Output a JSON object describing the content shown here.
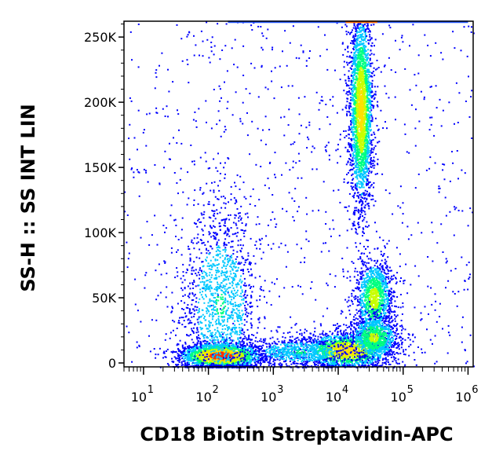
{
  "chart_data": {
    "type": "scatter",
    "subtype": "flow-cytometry-density-dot-plot",
    "xlabel": "CD18 Biotin Streptavidin-APC",
    "ylabel": "SS-H :: SS INT LIN",
    "x_scale": "log",
    "xlim": [
      5,
      1200000
    ],
    "ylim": [
      -3000,
      262144
    ],
    "x_ticks": [
      {
        "value": 10,
        "base": "10",
        "exp": "1"
      },
      {
        "value": 100,
        "base": "10",
        "exp": "2"
      },
      {
        "value": 1000,
        "base": "10",
        "exp": "3"
      },
      {
        "value": 10000,
        "base": "10",
        "exp": "4"
      },
      {
        "value": 100000,
        "base": "10",
        "exp": "5"
      },
      {
        "value": 1000000,
        "base": "10",
        "exp": "6"
      }
    ],
    "y_ticks": [
      {
        "value": 0,
        "label": "0"
      },
      {
        "value": 50000,
        "label": "50K"
      },
      {
        "value": 100000,
        "label": "100K"
      },
      {
        "value": 150000,
        "label": "150K"
      },
      {
        "value": 200000,
        "label": "200K"
      },
      {
        "value": 250000,
        "label": "250K"
      }
    ],
    "grid": false,
    "colormap": [
      "#0000ff",
      "#00c8ff",
      "#00ff80",
      "#c8ff00",
      "#ffe000",
      "#ff3000"
    ],
    "populations": [
      {
        "x_center": 150,
        "x_spread_decades": 0.32,
        "y_center": 6000,
        "y_spread": 5000,
        "events": 2200,
        "intensity": 1.0
      },
      {
        "x_center": 150,
        "y_center": 45000,
        "x_spread_decades": 0.3,
        "y_spread": 38000,
        "events": 1400,
        "intensity": 0.35
      },
      {
        "x_center": 13000,
        "x_spread_decades": 0.35,
        "y_center": 10000,
        "y_spread": 7000,
        "events": 1800,
        "intensity": 0.8
      },
      {
        "x_center": 2500,
        "x_spread_decades": 0.45,
        "y_center": 9000,
        "y_spread": 6000,
        "events": 700,
        "intensity": 0.35
      },
      {
        "x_center": 22000,
        "x_spread_decades": 0.09,
        "y_center": 195000,
        "y_spread": 38000,
        "events": 2600,
        "intensity": 0.75
      },
      {
        "x_center": 35000,
        "x_spread_decades": 0.14,
        "y_center": 50000,
        "y_spread": 15000,
        "events": 1200,
        "intensity": 0.6
      },
      {
        "x_center": 35000,
        "x_spread_decades": 0.2,
        "y_center": 20000,
        "y_spread": 9000,
        "events": 900,
        "intensity": 0.55
      }
    ],
    "saturation_band": {
      "y_value": 262000,
      "x_from": 200,
      "x_to": 1000000
    }
  }
}
